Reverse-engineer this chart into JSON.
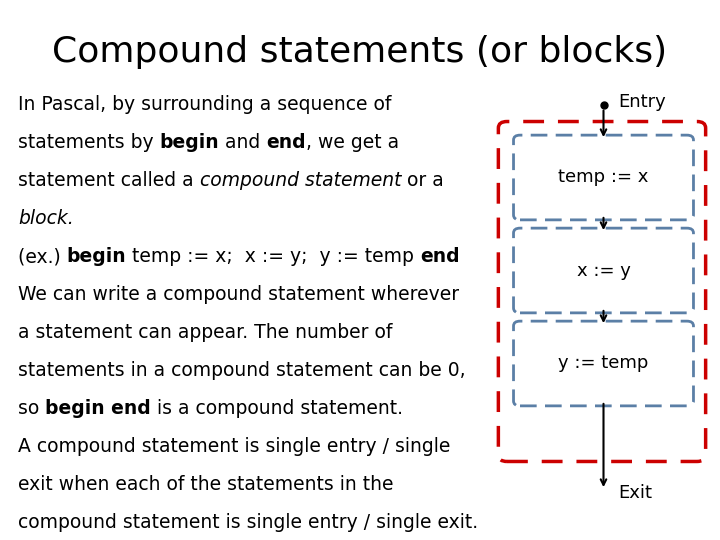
{
  "title": "Compound statements (or blocks)",
  "background_color": "#ffffff",
  "text_color": "#000000",
  "title_fontsize": 26,
  "body_fontsize": 13.5,
  "diagram_labels": [
    "temp := x",
    "x := y",
    "y := temp"
  ],
  "entry_label": "Entry",
  "exit_label": "Exit",
  "outer_box_color": "#cc0000",
  "inner_box_color": "#5b7fa6",
  "dot_color": "#000000"
}
